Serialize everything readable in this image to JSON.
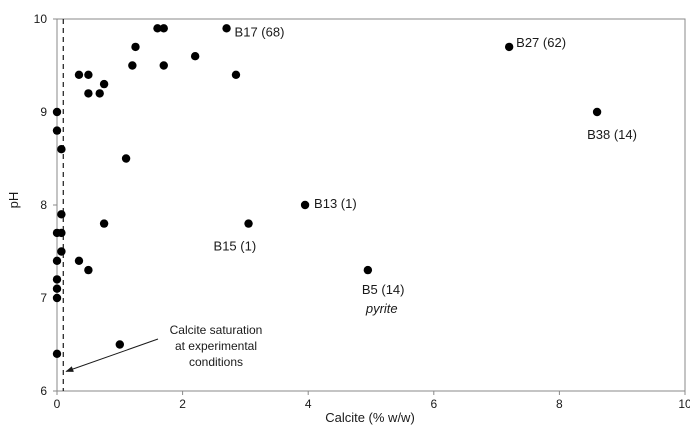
{
  "chart_data": {
    "type": "scatter",
    "xlabel": "Calcite (% w/w)",
    "ylabel": "pH",
    "xlim": [
      0,
      10
    ],
    "ylim": [
      6,
      10
    ],
    "xticks": [
      "0",
      "2",
      "4",
      "6",
      "8",
      "10"
    ],
    "yticks": [
      "6",
      "7",
      "8",
      "9",
      "10"
    ],
    "grid": false,
    "marker_color": "#000000",
    "series": [
      {
        "points": [
          {
            "x": 1.6,
            "y": 9.9
          },
          {
            "x": 1.7,
            "y": 9.9
          },
          {
            "x": 2.7,
            "y": 9.9,
            "label": "B17 (68)"
          },
          {
            "x": 1.25,
            "y": 9.7
          },
          {
            "x": 2.2,
            "y": 9.6
          },
          {
            "x": 1.2,
            "y": 9.5
          },
          {
            "x": 1.7,
            "y": 9.5
          },
          {
            "x": 0.35,
            "y": 9.4
          },
          {
            "x": 0.5,
            "y": 9.4
          },
          {
            "x": 2.85,
            "y": 9.4
          },
          {
            "x": 0.75,
            "y": 9.3
          },
          {
            "x": 0.5,
            "y": 9.2
          },
          {
            "x": 0.68,
            "y": 9.2
          },
          {
            "x": 0.0,
            "y": 9.0
          },
          {
            "x": 0.0,
            "y": 8.8
          },
          {
            "x": 0.07,
            "y": 8.6
          },
          {
            "x": 1.1,
            "y": 8.5
          },
          {
            "x": 0.07,
            "y": 7.9
          },
          {
            "x": 0.75,
            "y": 7.8
          },
          {
            "x": 0.0,
            "y": 7.7
          },
          {
            "x": 0.07,
            "y": 7.7
          },
          {
            "x": 0.07,
            "y": 7.5
          },
          {
            "x": 0.0,
            "y": 7.4
          },
          {
            "x": 0.35,
            "y": 7.4
          },
          {
            "x": 0.5,
            "y": 7.3
          },
          {
            "x": 0.0,
            "y": 7.2
          },
          {
            "x": 0.0,
            "y": 7.1
          },
          {
            "x": 0.0,
            "y": 7.0
          },
          {
            "x": 1.0,
            "y": 6.5
          },
          {
            "x": 0.0,
            "y": 6.4
          },
          {
            "x": 7.2,
            "y": 9.7,
            "label": "B27 (62)"
          },
          {
            "x": 8.6,
            "y": 9.0,
            "label": "B38 (14)"
          },
          {
            "x": 3.95,
            "y": 8.0,
            "label": "B13 (1)"
          },
          {
            "x": 3.05,
            "y": 7.8,
            "label": "B15 (1)"
          },
          {
            "x": 4.95,
            "y": 7.3,
            "label": "B5 (14)",
            "sublabel": "pyrite"
          }
        ]
      }
    ],
    "reference_line": {
      "x": 0.1,
      "style": "dashed"
    },
    "annotation": {
      "lines": [
        "Calcite saturation",
        "at experimental",
        "conditions"
      ],
      "arrow_target": {
        "x": 0.1,
        "y": 6.2
      }
    }
  }
}
